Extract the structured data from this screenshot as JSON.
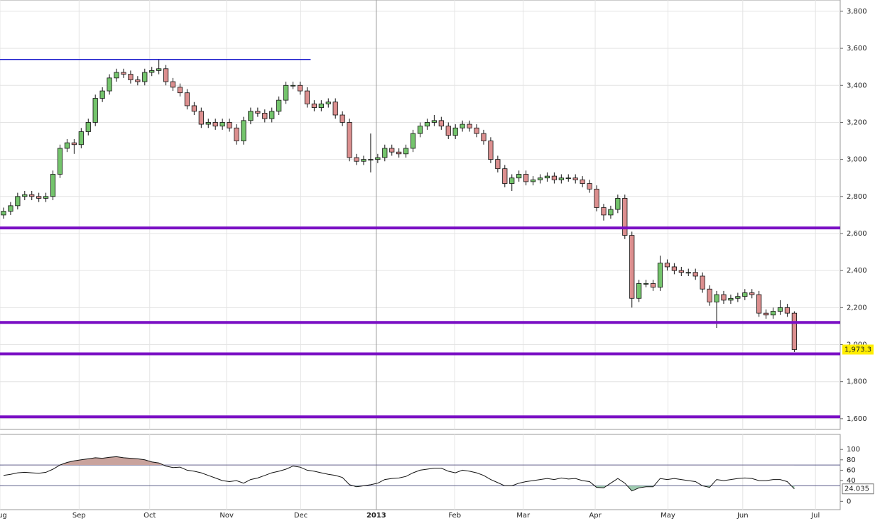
{
  "chart_data": [
    {
      "type": "candlestick",
      "x": [
        0,
        1,
        2,
        3,
        4,
        5,
        6,
        7,
        8,
        9,
        10,
        11,
        12,
        13,
        14,
        15,
        16,
        17,
        18,
        19,
        20,
        21,
        22,
        23,
        24,
        25,
        26,
        27,
        28,
        29,
        30,
        31,
        32,
        33,
        34,
        35,
        36,
        37,
        38,
        39,
        40,
        41,
        42,
        43,
        44,
        45,
        46,
        47,
        48,
        49,
        50,
        51,
        52,
        53,
        54,
        55,
        56,
        57,
        58,
        59,
        60,
        61,
        62,
        63,
        64,
        65,
        66,
        67,
        68,
        69,
        70,
        71,
        72,
        73,
        74,
        75,
        76,
        77,
        78,
        79,
        80,
        81,
        82,
        83,
        84,
        85,
        86,
        87,
        88,
        89,
        90,
        91,
        92,
        93,
        94,
        95,
        96,
        97,
        98,
        99,
        100,
        101,
        102,
        103,
        104,
        105,
        106,
        107,
        108,
        109,
        110,
        111,
        112
      ],
      "open": [
        2700,
        2720,
        2750,
        2800,
        2810,
        2800,
        2790,
        2800,
        2920,
        3060,
        3090,
        3080,
        3150,
        3200,
        3330,
        3370,
        3440,
        3470,
        3460,
        3430,
        3420,
        3470,
        3480,
        3490,
        3420,
        3390,
        3360,
        3290,
        3260,
        3190,
        3200,
        3180,
        3200,
        3170,
        3100,
        3210,
        3260,
        3250,
        3220,
        3260,
        3320,
        3400,
        3400,
        3370,
        3300,
        3280,
        3300,
        3310,
        3240,
        3200,
        3010,
        2990,
        3000,
        3000,
        3010,
        3060,
        3040,
        3030,
        3060,
        3140,
        3180,
        3200,
        3210,
        3180,
        3130,
        3170,
        3190,
        3170,
        3140,
        3100,
        3000,
        2950,
        2870,
        2900,
        2920,
        2880,
        2890,
        2900,
        2910,
        2890,
        2900,
        2900,
        2890,
        2870,
        2840,
        2740,
        2700,
        2730,
        2790,
        2590,
        2250,
        2330,
        2330,
        2310,
        2440,
        2420,
        2400,
        2390,
        2390,
        2370,
        2300,
        2230,
        2270,
        2240,
        2250,
        2260,
        2280,
        2270,
        2170,
        2160,
        2180,
        2200,
        2170
      ],
      "high": [
        2740,
        2770,
        2820,
        2830,
        2830,
        2820,
        2820,
        2940,
        3080,
        3110,
        3110,
        3170,
        3220,
        3350,
        3390,
        3460,
        3490,
        3490,
        3480,
        3450,
        3490,
        3500,
        3540,
        3510,
        3440,
        3410,
        3380,
        3310,
        3280,
        3220,
        3220,
        3220,
        3220,
        3190,
        3230,
        3280,
        3280,
        3270,
        3280,
        3340,
        3420,
        3420,
        3420,
        3390,
        3320,
        3320,
        3330,
        3330,
        3260,
        3220,
        3030,
        3020,
        3140,
        3030,
        3080,
        3080,
        3060,
        3080,
        3160,
        3200,
        3220,
        3240,
        3230,
        3200,
        3190,
        3210,
        3210,
        3190,
        3160,
        3120,
        3020,
        2970,
        2920,
        2940,
        2940,
        2910,
        2920,
        2930,
        2930,
        2920,
        2920,
        2920,
        2910,
        2890,
        2860,
        2760,
        2750,
        2810,
        2810,
        2610,
        2350,
        2350,
        2350,
        2480,
        2460,
        2440,
        2420,
        2410,
        2410,
        2390,
        2320,
        2290,
        2290,
        2270,
        2280,
        2300,
        2300,
        2290,
        2190,
        2200,
        2240,
        2220,
        2180
      ],
      "low": [
        2680,
        2700,
        2730,
        2780,
        2780,
        2770,
        2770,
        2780,
        2900,
        3040,
        3030,
        3060,
        3130,
        3180,
        3310,
        3350,
        3420,
        3440,
        3410,
        3400,
        3400,
        3450,
        3460,
        3400,
        3370,
        3340,
        3270,
        3240,
        3170,
        3170,
        3160,
        3160,
        3150,
        3080,
        3080,
        3190,
        3230,
        3200,
        3200,
        3240,
        3300,
        3380,
        3350,
        3280,
        3260,
        3260,
        3280,
        3220,
        3180,
        2990,
        2970,
        2970,
        2930,
        2980,
        2990,
        3020,
        3010,
        3010,
        3040,
        3120,
        3160,
        3180,
        3160,
        3110,
        3110,
        3150,
        3150,
        3120,
        3080,
        2980,
        2930,
        2850,
        2830,
        2880,
        2860,
        2860,
        2870,
        2880,
        2870,
        2870,
        2880,
        2870,
        2850,
        2820,
        2720,
        2670,
        2680,
        2710,
        2570,
        2200,
        2230,
        2310,
        2290,
        2290,
        2400,
        2380,
        2370,
        2370,
        2350,
        2280,
        2210,
        2090,
        2220,
        2220,
        2230,
        2240,
        2250,
        2150,
        2140,
        2140,
        2160,
        2150,
        1960
      ],
      "close": [
        2720,
        2750,
        2800,
        2810,
        2800,
        2790,
        2800,
        2920,
        3060,
        3090,
        3080,
        3150,
        3200,
        3330,
        3370,
        3440,
        3470,
        3460,
        3430,
        3420,
        3470,
        3480,
        3490,
        3420,
        3390,
        3360,
        3290,
        3260,
        3190,
        3200,
        3180,
        3200,
        3170,
        3100,
        3210,
        3260,
        3250,
        3220,
        3260,
        3320,
        3400,
        3400,
        3370,
        3300,
        3280,
        3300,
        3310,
        3240,
        3200,
        3010,
        2990,
        3000,
        3000,
        3010,
        3060,
        3040,
        3030,
        3060,
        3140,
        3180,
        3200,
        3210,
        3180,
        3130,
        3170,
        3190,
        3170,
        3140,
        3100,
        3000,
        2950,
        2870,
        2900,
        2920,
        2880,
        2890,
        2900,
        2910,
        2890,
        2900,
        2900,
        2890,
        2870,
        2840,
        2740,
        2700,
        2730,
        2790,
        2590,
        2250,
        2330,
        2330,
        2310,
        2440,
        2420,
        2400,
        2390,
        2390,
        2370,
        2300,
        2230,
        2270,
        2240,
        2250,
        2260,
        2280,
        2270,
        2170,
        2160,
        2180,
        2200,
        2170,
        1973.3
      ],
      "last_label": "1,973.3",
      "up_color": "#74c46c",
      "down_color": "#dc8f8f",
      "xlim": [
        -0.5,
        118.5
      ],
      "xticks": [
        {
          "value": -0.5,
          "label": "Aug"
        },
        {
          "value": 10.7,
          "label": "Sep"
        },
        {
          "value": 20.7,
          "label": "Oct"
        },
        {
          "value": 31.6,
          "label": "Nov"
        },
        {
          "value": 42.1,
          "label": "Dec"
        },
        {
          "value": 52.8,
          "label": "2013"
        },
        {
          "value": 63.9,
          "label": "Feb"
        },
        {
          "value": 73.6,
          "label": "Mar"
        },
        {
          "value": 83.8,
          "label": "Apr"
        },
        {
          "value": 94.1,
          "label": "May"
        },
        {
          "value": 104.7,
          "label": "Jun"
        },
        {
          "value": 115,
          "label": "Jul"
        }
      ],
      "ylim": [
        1542,
        3861
      ],
      "yticks": [
        {
          "value": 1600,
          "label": "1,600"
        },
        {
          "value": 1800,
          "label": "1,800"
        },
        {
          "value": 2000,
          "label": "2,000"
        },
        {
          "value": 2200,
          "label": "2,200"
        },
        {
          "value": 2400,
          "label": "2,400"
        },
        {
          "value": 2600,
          "label": "2,600"
        },
        {
          "value": 2800,
          "label": "2,800"
        },
        {
          "value": 3000,
          "label": "3,000"
        },
        {
          "value": 3200,
          "label": "3,200"
        },
        {
          "value": 3400,
          "label": "3,400"
        },
        {
          "value": 3600,
          "label": "3,600"
        },
        {
          "value": 3800,
          "label": "3,800"
        }
      ],
      "grid": true,
      "hlines": [
        {
          "value": 3540,
          "from": -0.5,
          "to": 43.5,
          "color": "#1a1acc"
        },
        {
          "value": 2630,
          "from": -0.5,
          "to": 118.5,
          "color": "#7a0fc4"
        },
        {
          "value": 2120,
          "from": -0.5,
          "to": 118.5,
          "color": "#7a0fc4"
        },
        {
          "value": 1950,
          "from": -0.5,
          "to": 118.5,
          "color": "#7a0fc4"
        },
        {
          "value": 1610,
          "from": -0.5,
          "to": 118.5,
          "color": "#7a0fc4"
        }
      ]
    },
    {
      "type": "line",
      "values": [
        50,
        52,
        55,
        56,
        55,
        54,
        56,
        62,
        70,
        75,
        78,
        80,
        82,
        84,
        83,
        85,
        86,
        84,
        83,
        82,
        80,
        76,
        74,
        68,
        65,
        66,
        60,
        58,
        55,
        50,
        45,
        40,
        38,
        40,
        35,
        42,
        45,
        50,
        55,
        58,
        62,
        68,
        66,
        60,
        58,
        55,
        52,
        50,
        46,
        32,
        28,
        30,
        32,
        35,
        42,
        44,
        45,
        48,
        55,
        60,
        62,
        64,
        64,
        58,
        55,
        60,
        58,
        55,
        50,
        42,
        36,
        30,
        30,
        35,
        38,
        40,
        42,
        44,
        42,
        45,
        43,
        44,
        40,
        38,
        27,
        26,
        35,
        44,
        35,
        20,
        26,
        28,
        28,
        44,
        42,
        44,
        42,
        40,
        38,
        30,
        27,
        42,
        40,
        42,
        44,
        45,
        44,
        40,
        40,
        42,
        42,
        38,
        24.035
      ],
      "color": "#111111",
      "ylim": [
        -16,
        129
      ],
      "yticks": [
        0,
        40,
        60,
        80,
        100
      ],
      "levels": [
        70,
        30
      ],
      "over_color": "#c9a39d",
      "under_color": "#9fcbb0"
    }
  ]
}
